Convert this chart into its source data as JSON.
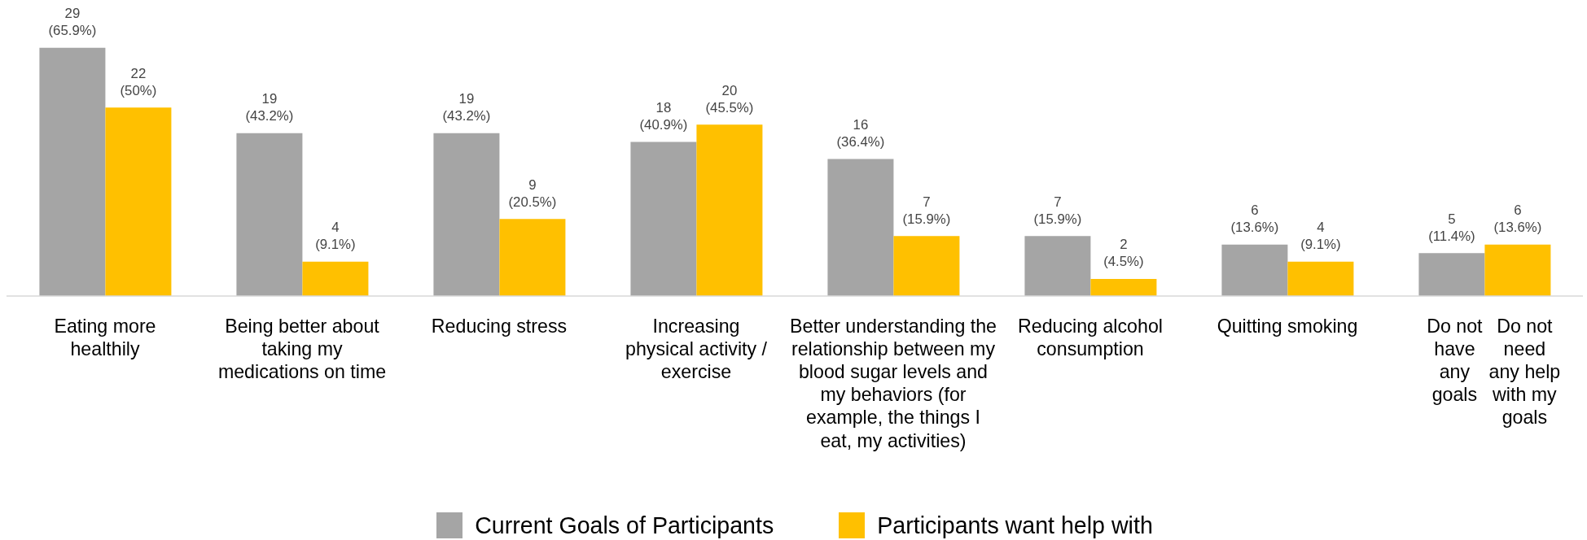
{
  "chart_data": {
    "type": "bar",
    "categories": [
      "Eating more\nhealthily",
      "Being better about\ntaking my\nmedications on time",
      "Reducing stress",
      "Increasing\nphysical activity /\nexercise",
      "Better understanding the\nrelationship between my\nblood sugar levels and\nmy behaviors (for\nexample, the things I\neat, my activities)",
      "Reducing alcohol\nconsumption",
      "Quitting smoking",
      null
    ],
    "series": [
      {
        "name": "Current Goals of Participants",
        "color": "#a5a5a5",
        "values": [
          29,
          19,
          19,
          18,
          16,
          7,
          6,
          5
        ],
        "value_labels": [
          "29\n(65.9%)",
          "19\n(43.2%)",
          "19\n(43.2%)",
          "18\n(40.9%)",
          "16\n(36.4%)",
          "7\n(15.9%)",
          "6\n(13.6%)",
          "5\n(11.4%)"
        ]
      },
      {
        "name": "Participants want help with",
        "color": "#ffc000",
        "values": [
          22,
          4,
          9,
          20,
          7,
          2,
          4,
          6
        ],
        "value_labels": [
          "22\n(50%)",
          "4\n(9.1%)",
          "9\n(20.5%)",
          "20\n(45.5%)",
          "7\n(15.9%)",
          "2\n(4.5%)",
          "4\n(9.1%)",
          "6\n(13.6%)"
        ]
      }
    ],
    "annotations": [
      "Do not\nhave\nany\ngoals",
      "Do not\nneed\nany help\nwith my\ngoals"
    ],
    "legend": "bottom"
  }
}
